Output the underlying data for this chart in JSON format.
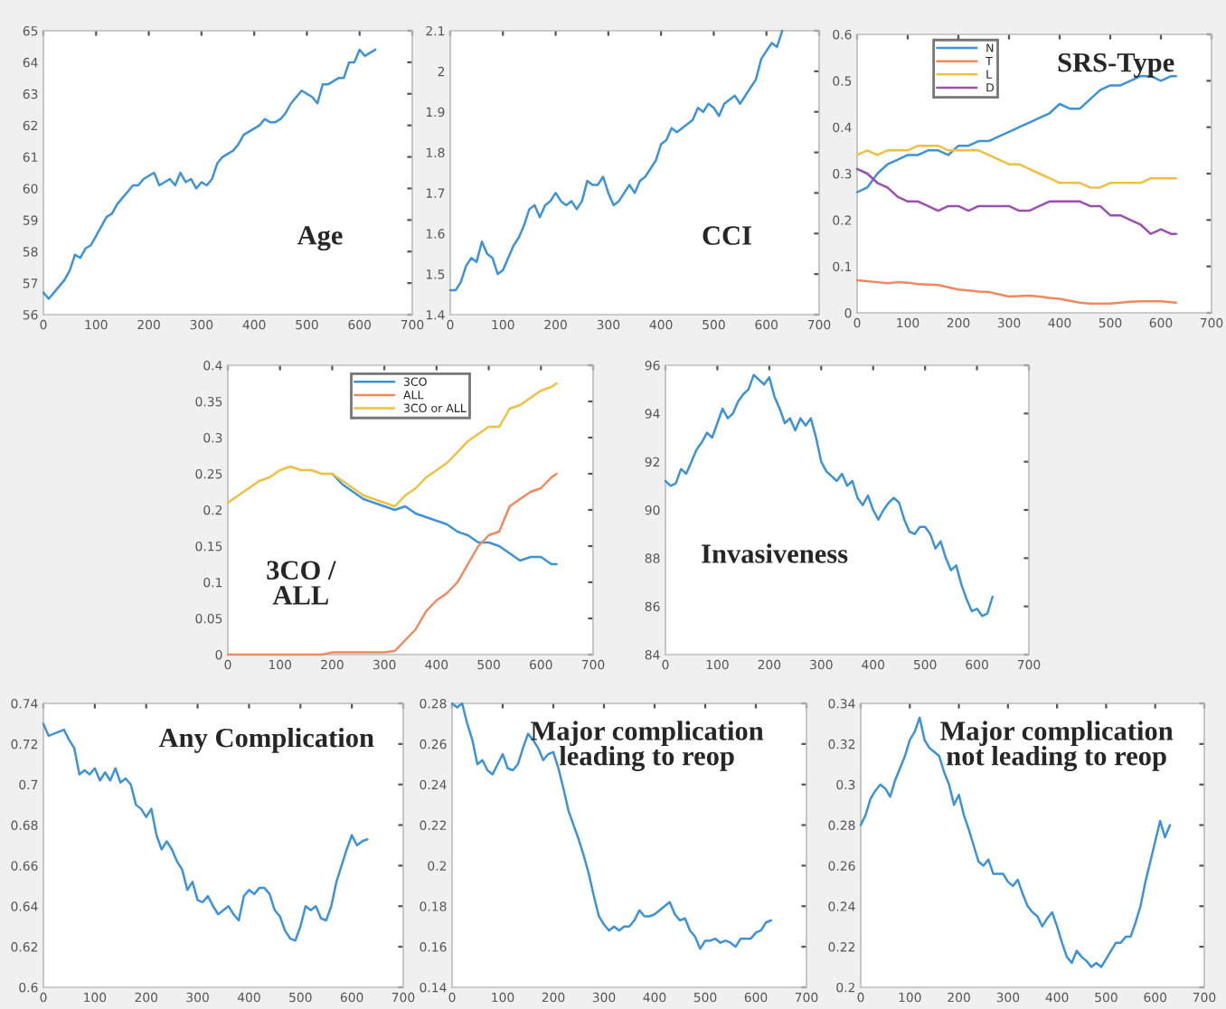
{
  "chart_data": [
    {
      "type": "line",
      "title": "Age",
      "x": [
        0,
        10,
        20,
        30,
        40,
        50,
        60,
        70,
        80,
        90,
        100,
        110,
        120,
        130,
        140,
        150,
        160,
        170,
        180,
        190,
        200,
        210,
        220,
        230,
        240,
        250,
        260,
        270,
        280,
        290,
        300,
        310,
        320,
        330,
        340,
        350,
        360,
        370,
        380,
        390,
        400,
        410,
        420,
        430,
        440,
        450,
        460,
        470,
        480,
        490,
        500,
        510,
        520,
        530,
        540,
        550,
        560,
        570,
        580,
        590,
        600,
        610,
        620,
        630
      ],
      "series": [
        {
          "color": "#3d93d6",
          "values": [
            56.7,
            56.5,
            56.7,
            56.9,
            57.1,
            57.4,
            57.9,
            57.8,
            58.1,
            58.2,
            58.5,
            58.8,
            59.1,
            59.2,
            59.5,
            59.7,
            59.9,
            60.1,
            60.1,
            60.3,
            60.4,
            60.5,
            60.1,
            60.2,
            60.3,
            60.1,
            60.5,
            60.2,
            60.3,
            60.0,
            60.2,
            60.1,
            60.3,
            60.8,
            61.0,
            61.1,
            61.2,
            61.4,
            61.7,
            61.8,
            61.9,
            62.0,
            62.2,
            62.1,
            62.1,
            62.2,
            62.4,
            62.7,
            62.9,
            63.1,
            63.0,
            62.9,
            62.7,
            63.3,
            63.3,
            63.4,
            63.5,
            63.5,
            64.0,
            64.0,
            64.4,
            64.2,
            64.3,
            64.4
          ]
        }
      ],
      "xlim": [
        0,
        700
      ],
      "xticks": [
        0,
        100,
        200,
        300,
        400,
        500,
        600,
        700
      ],
      "ylim": [
        56,
        65
      ],
      "yticks": [
        56,
        57,
        58,
        59,
        60,
        61,
        62,
        63,
        64,
        65
      ],
      "grid": false,
      "legend": false
    },
    {
      "type": "line",
      "title": "CCI",
      "x": [
        0,
        10,
        20,
        30,
        40,
        50,
        60,
        70,
        80,
        90,
        100,
        110,
        120,
        130,
        140,
        150,
        160,
        170,
        180,
        190,
        200,
        210,
        220,
        230,
        240,
        250,
        260,
        270,
        280,
        290,
        300,
        310,
        320,
        330,
        340,
        350,
        360,
        370,
        380,
        390,
        400,
        410,
        420,
        430,
        440,
        450,
        460,
        470,
        480,
        490,
        500,
        510,
        520,
        530,
        540,
        550,
        560,
        570,
        580,
        590,
        600,
        610,
        620,
        630
      ],
      "series": [
        {
          "color": "#3d93d6",
          "values": [
            1.46,
            1.46,
            1.48,
            1.52,
            1.54,
            1.53,
            1.58,
            1.55,
            1.54,
            1.5,
            1.51,
            1.54,
            1.57,
            1.59,
            1.62,
            1.66,
            1.67,
            1.64,
            1.67,
            1.68,
            1.7,
            1.68,
            1.67,
            1.68,
            1.66,
            1.68,
            1.73,
            1.72,
            1.72,
            1.74,
            1.7,
            1.67,
            1.68,
            1.7,
            1.72,
            1.7,
            1.73,
            1.74,
            1.76,
            1.78,
            1.82,
            1.83,
            1.86,
            1.85,
            1.86,
            1.87,
            1.88,
            1.91,
            1.9,
            1.92,
            1.91,
            1.89,
            1.92,
            1.93,
            1.94,
            1.92,
            1.94,
            1.96,
            1.98,
            2.03,
            2.05,
            2.07,
            2.06,
            2.1
          ]
        }
      ],
      "xlim": [
        0,
        700
      ],
      "xticks": [
        0,
        100,
        200,
        300,
        400,
        500,
        600,
        700
      ],
      "ylim": [
        1.4,
        2.1
      ],
      "yticks": [
        1.4,
        1.5,
        1.6,
        1.7,
        1.8,
        1.9,
        2,
        2.1
      ],
      "grid": false,
      "legend": false
    },
    {
      "type": "line",
      "title": "SRS-Type",
      "x": [
        0,
        20,
        40,
        60,
        80,
        100,
        120,
        140,
        160,
        180,
        200,
        220,
        240,
        260,
        280,
        300,
        320,
        340,
        360,
        380,
        400,
        420,
        440,
        460,
        480,
        500,
        520,
        540,
        560,
        580,
        600,
        620,
        630
      ],
      "series": [
        {
          "name": "N",
          "color": "#3d93d6",
          "values": [
            0.26,
            0.27,
            0.3,
            0.32,
            0.33,
            0.34,
            0.34,
            0.35,
            0.35,
            0.34,
            0.36,
            0.36,
            0.37,
            0.37,
            0.38,
            0.39,
            0.4,
            0.41,
            0.42,
            0.43,
            0.45,
            0.44,
            0.44,
            0.46,
            0.48,
            0.49,
            0.49,
            0.5,
            0.51,
            0.51,
            0.5,
            0.51,
            0.51
          ]
        },
        {
          "name": "T",
          "color": "#f08a5d",
          "values": [
            0.07,
            0.068,
            0.066,
            0.064,
            0.066,
            0.065,
            0.062,
            0.061,
            0.06,
            0.055,
            0.05,
            0.048,
            0.046,
            0.045,
            0.04,
            0.035,
            0.036,
            0.037,
            0.035,
            0.032,
            0.03,
            0.026,
            0.022,
            0.02,
            0.02,
            0.02,
            0.022,
            0.024,
            0.025,
            0.025,
            0.025,
            0.023,
            0.022
          ]
        },
        {
          "name": "L",
          "color": "#f2c040",
          "values": [
            0.34,
            0.35,
            0.34,
            0.35,
            0.35,
            0.35,
            0.36,
            0.36,
            0.36,
            0.35,
            0.35,
            0.35,
            0.35,
            0.34,
            0.33,
            0.32,
            0.32,
            0.31,
            0.3,
            0.29,
            0.28,
            0.28,
            0.28,
            0.27,
            0.27,
            0.28,
            0.28,
            0.28,
            0.28,
            0.29,
            0.29,
            0.29,
            0.29
          ]
        },
        {
          "name": "D",
          "color": "#9b4fb0",
          "values": [
            0.31,
            0.3,
            0.28,
            0.27,
            0.25,
            0.24,
            0.24,
            0.23,
            0.22,
            0.23,
            0.23,
            0.22,
            0.23,
            0.23,
            0.23,
            0.23,
            0.22,
            0.22,
            0.23,
            0.24,
            0.24,
            0.24,
            0.24,
            0.23,
            0.23,
            0.21,
            0.21,
            0.2,
            0.19,
            0.17,
            0.18,
            0.17,
            0.17
          ]
        }
      ],
      "xlim": [
        0,
        700
      ],
      "xticks": [
        0,
        100,
        200,
        300,
        400,
        500,
        600,
        700
      ],
      "ylim": [
        0,
        0.6
      ],
      "yticks": [
        0,
        0.1,
        0.2,
        0.3,
        0.4,
        0.5,
        0.6
      ],
      "grid": false,
      "legend": "top left"
    },
    {
      "type": "line",
      "title": "3CO /\nALL",
      "x": [
        0,
        20,
        40,
        60,
        80,
        100,
        120,
        140,
        160,
        180,
        200,
        220,
        240,
        260,
        280,
        300,
        320,
        340,
        360,
        380,
        400,
        420,
        440,
        460,
        480,
        500,
        520,
        540,
        560,
        580,
        600,
        620,
        630
      ],
      "series": [
        {
          "name": "3CO",
          "color": "#3d93d6",
          "values": [
            null,
            null,
            null,
            null,
            null,
            null,
            null,
            null,
            null,
            null,
            0.25,
            0.235,
            0.225,
            0.215,
            0.21,
            0.205,
            0.2,
            0.205,
            0.195,
            0.19,
            0.185,
            0.18,
            0.17,
            0.165,
            0.155,
            0.155,
            0.15,
            0.14,
            0.13,
            0.135,
            0.135,
            0.125,
            0.125
          ]
        },
        {
          "name": "ALL",
          "color": "#f08a5d",
          "values": [
            0,
            0,
            0,
            0,
            0,
            0,
            0,
            0,
            0,
            0,
            0.003,
            0.003,
            0.003,
            0.003,
            0.003,
            0.003,
            0.005,
            0.02,
            0.035,
            0.06,
            0.075,
            0.085,
            0.1,
            0.125,
            0.15,
            0.165,
            0.17,
            0.205,
            0.215,
            0.225,
            0.23,
            0.245,
            0.25
          ]
        },
        {
          "name": "3CO or ALL",
          "color": "#f2c040",
          "values": [
            0.21,
            0.22,
            0.23,
            0.24,
            0.245,
            0.255,
            0.26,
            0.255,
            0.255,
            0.25,
            0.25,
            0.24,
            0.23,
            0.22,
            0.215,
            0.21,
            0.205,
            0.22,
            0.23,
            0.245,
            0.255,
            0.265,
            0.28,
            0.295,
            0.305,
            0.315,
            0.315,
            0.34,
            0.345,
            0.355,
            0.365,
            0.37,
            0.375
          ]
        }
      ],
      "xlim": [
        0,
        700
      ],
      "xticks": [
        0,
        100,
        200,
        300,
        400,
        500,
        600,
        700
      ],
      "ylim": [
        0,
        0.4
      ],
      "yticks": [
        0,
        0.05,
        0.1,
        0.15,
        0.2,
        0.25,
        0.3,
        0.35,
        0.4
      ],
      "grid": false,
      "legend": "top"
    },
    {
      "type": "line",
      "title": "Invasiveness",
      "x": [
        0,
        10,
        20,
        30,
        40,
        50,
        60,
        70,
        80,
        90,
        100,
        110,
        120,
        130,
        140,
        150,
        160,
        170,
        180,
        190,
        200,
        210,
        220,
        230,
        240,
        250,
        260,
        270,
        280,
        290,
        300,
        310,
        320,
        330,
        340,
        350,
        360,
        370,
        380,
        390,
        400,
        410,
        420,
        430,
        440,
        450,
        460,
        470,
        480,
        490,
        500,
        510,
        520,
        530,
        540,
        550,
        560,
        570,
        580,
        590,
        600,
        610,
        620,
        630
      ],
      "series": [
        {
          "color": "#3d93d6",
          "values": [
            91.2,
            91.0,
            91.1,
            91.7,
            91.5,
            92.0,
            92.5,
            92.8,
            93.2,
            93.0,
            93.6,
            94.2,
            93.8,
            94.0,
            94.5,
            94.8,
            95.0,
            95.6,
            95.4,
            95.2,
            95.5,
            94.7,
            94.2,
            93.6,
            93.8,
            93.3,
            93.8,
            93.5,
            93.8,
            93.0,
            92.0,
            91.6,
            91.4,
            91.2,
            91.5,
            91.0,
            91.2,
            90.5,
            90.2,
            90.6,
            90.0,
            89.6,
            90.0,
            90.3,
            90.5,
            90.3,
            89.6,
            89.1,
            89.0,
            89.3,
            89.3,
            89.0,
            88.4,
            88.7,
            88.0,
            87.5,
            87.7,
            86.9,
            86.3,
            85.8,
            85.9,
            85.6,
            85.7,
            86.4
          ]
        }
      ],
      "xlim": [
        0,
        700
      ],
      "xticks": [
        0,
        100,
        200,
        300,
        400,
        500,
        600,
        700
      ],
      "ylim": [
        84,
        96
      ],
      "yticks": [
        84,
        86,
        88,
        90,
        92,
        94,
        96
      ],
      "grid": false,
      "legend": false
    },
    {
      "type": "line",
      "title": "Any Complication",
      "x": [
        0,
        10,
        20,
        30,
        40,
        50,
        60,
        70,
        80,
        90,
        100,
        110,
        120,
        130,
        140,
        150,
        160,
        170,
        180,
        190,
        200,
        210,
        220,
        230,
        240,
        250,
        260,
        270,
        280,
        290,
        300,
        310,
        320,
        330,
        340,
        350,
        360,
        370,
        380,
        390,
        400,
        410,
        420,
        430,
        440,
        450,
        460,
        470,
        480,
        490,
        500,
        510,
        520,
        530,
        540,
        550,
        560,
        570,
        580,
        590,
        600,
        610,
        620,
        630
      ],
      "series": [
        {
          "color": "#3d93d6",
          "values": [
            0.73,
            0.724,
            0.725,
            0.726,
            0.727,
            0.722,
            0.718,
            0.705,
            0.707,
            0.705,
            0.708,
            0.702,
            0.706,
            0.702,
            0.708,
            0.701,
            0.703,
            0.7,
            0.69,
            0.688,
            0.684,
            0.688,
            0.675,
            0.668,
            0.672,
            0.668,
            0.662,
            0.658,
            0.648,
            0.652,
            0.643,
            0.642,
            0.645,
            0.64,
            0.636,
            0.638,
            0.64,
            0.636,
            0.633,
            0.645,
            0.648,
            0.646,
            0.649,
            0.649,
            0.646,
            0.638,
            0.635,
            0.628,
            0.624,
            0.623,
            0.63,
            0.64,
            0.638,
            0.64,
            0.634,
            0.633,
            0.64,
            0.652,
            0.66,
            0.668,
            0.675,
            0.67,
            0.672,
            0.673
          ]
        }
      ],
      "xlim": [
        0,
        700
      ],
      "xticks": [
        0,
        100,
        200,
        300,
        400,
        500,
        600,
        700
      ],
      "ylim": [
        0.6,
        0.74
      ],
      "yticks": [
        0.6,
        0.62,
        0.64,
        0.66,
        0.68,
        0.7,
        0.72,
        0.74
      ],
      "grid": false,
      "legend": false
    },
    {
      "type": "line",
      "title": "Major complication\nleading to reop",
      "x": [
        0,
        10,
        20,
        30,
        40,
        50,
        60,
        70,
        80,
        90,
        100,
        110,
        120,
        130,
        140,
        150,
        160,
        170,
        180,
        190,
        200,
        210,
        220,
        230,
        240,
        250,
        260,
        270,
        280,
        290,
        300,
        310,
        320,
        330,
        340,
        350,
        360,
        370,
        380,
        390,
        400,
        410,
        420,
        430,
        440,
        450,
        460,
        470,
        480,
        490,
        500,
        510,
        520,
        530,
        540,
        550,
        560,
        570,
        580,
        590,
        600,
        610,
        620,
        630
      ],
      "series": [
        {
          "color": "#3d93d6",
          "values": [
            0.28,
            0.278,
            0.28,
            0.27,
            0.262,
            0.25,
            0.252,
            0.247,
            0.245,
            0.25,
            0.255,
            0.248,
            0.247,
            0.25,
            0.258,
            0.265,
            0.262,
            0.258,
            0.252,
            0.255,
            0.256,
            0.248,
            0.238,
            0.227,
            0.22,
            0.213,
            0.205,
            0.196,
            0.185,
            0.175,
            0.171,
            0.168,
            0.17,
            0.168,
            0.17,
            0.17,
            0.173,
            0.178,
            0.175,
            0.175,
            0.176,
            0.178,
            0.18,
            0.182,
            0.176,
            0.173,
            0.174,
            0.168,
            0.165,
            0.159,
            0.163,
            0.163,
            0.164,
            0.162,
            0.163,
            0.162,
            0.16,
            0.164,
            0.164,
            0.164,
            0.167,
            0.168,
            0.172,
            0.173
          ]
        }
      ],
      "xlim": [
        0,
        700
      ],
      "xticks": [
        0,
        100,
        200,
        300,
        400,
        500,
        600,
        700
      ],
      "ylim": [
        0.14,
        0.28
      ],
      "yticks": [
        0.14,
        0.16,
        0.18,
        0.2,
        0.22,
        0.24,
        0.26,
        0.28
      ],
      "grid": false,
      "legend": false
    },
    {
      "type": "line",
      "title": "Major complication\nnot leading to reop",
      "x": [
        0,
        10,
        20,
        30,
        40,
        50,
        60,
        70,
        80,
        90,
        100,
        110,
        120,
        130,
        140,
        150,
        160,
        170,
        180,
        190,
        200,
        210,
        220,
        230,
        240,
        250,
        260,
        270,
        280,
        290,
        300,
        310,
        320,
        330,
        340,
        350,
        360,
        370,
        380,
        390,
        400,
        410,
        420,
        430,
        440,
        450,
        460,
        470,
        480,
        490,
        500,
        510,
        520,
        530,
        540,
        550,
        560,
        570,
        580,
        590,
        600,
        610,
        620,
        630
      ],
      "series": [
        {
          "color": "#3d93d6",
          "values": [
            0.28,
            0.285,
            0.293,
            0.297,
            0.3,
            0.298,
            0.294,
            0.302,
            0.308,
            0.314,
            0.322,
            0.326,
            0.333,
            0.322,
            0.318,
            0.316,
            0.314,
            0.306,
            0.3,
            0.29,
            0.295,
            0.285,
            0.278,
            0.27,
            0.262,
            0.26,
            0.263,
            0.256,
            0.256,
            0.256,
            0.252,
            0.25,
            0.253,
            0.246,
            0.24,
            0.237,
            0.235,
            0.23,
            0.234,
            0.237,
            0.23,
            0.222,
            0.215,
            0.212,
            0.218,
            0.215,
            0.213,
            0.21,
            0.212,
            0.21,
            0.214,
            0.218,
            0.222,
            0.222,
            0.225,
            0.225,
            0.232,
            0.24,
            0.252,
            0.262,
            0.272,
            0.282,
            0.274,
            0.28
          ]
        }
      ],
      "xlim": [
        0,
        700
      ],
      "xticks": [
        0,
        100,
        200,
        300,
        400,
        500,
        600,
        700
      ],
      "ylim": [
        0.2,
        0.34
      ],
      "yticks": [
        0.2,
        0.22,
        0.24,
        0.26,
        0.28,
        0.3,
        0.32,
        0.34
      ],
      "grid": false,
      "legend": false
    }
  ]
}
